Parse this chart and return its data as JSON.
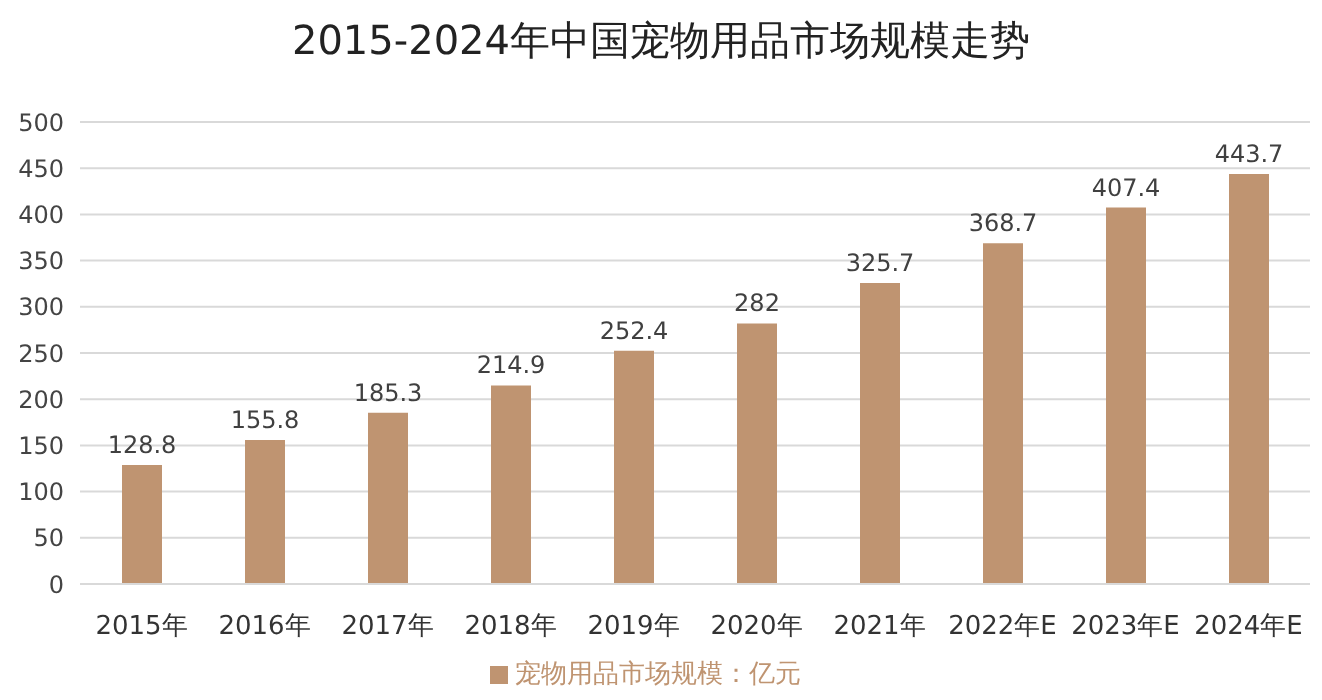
{
  "chart_data": {
    "type": "bar",
    "title": "2015-2024年中国宠物用品市场规模走势",
    "categories": [
      "2015年",
      "2016年",
      "2017年",
      "2018年",
      "2019年",
      "2020年",
      "2021年",
      "2022年E",
      "2023年E",
      "2024年E"
    ],
    "series": [
      {
        "name": "宠物用品市场规模：亿元",
        "color": "#bf9471",
        "values": [
          128.8,
          155.8,
          185.3,
          214.9,
          252.4,
          282,
          325.7,
          368.7,
          407.4,
          443.7
        ]
      }
    ],
    "ylim": [
      0,
      500
    ],
    "yticks": [
      0,
      50,
      100,
      150,
      200,
      250,
      300,
      350,
      400,
      450,
      500
    ],
    "grid": "y",
    "legend": "bottom",
    "data_labels": true
  }
}
